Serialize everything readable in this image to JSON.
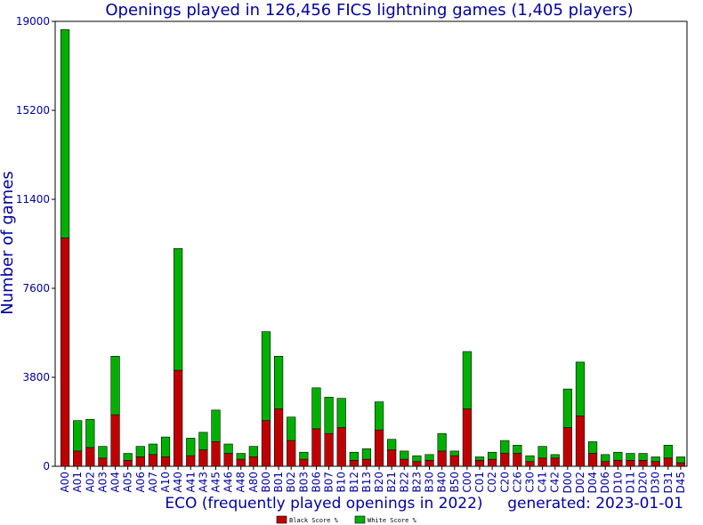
{
  "chart_data": {
    "type": "bar",
    "stacked": true,
    "title": "Openings played in 126,456 FICS lightning games (1,405 players)",
    "xlabel": "ECO (frequently played openings in 2022)",
    "ylabel": "Number of games",
    "generated": "generated: 2023-01-01",
    "ylim": [
      0,
      19000
    ],
    "yticks": [
      0,
      3800,
      7600,
      11400,
      15200,
      19000
    ],
    "legend_position": "bottom-center",
    "categories": [
      "A00",
      "A01",
      "A02",
      "A03",
      "A04",
      "A05",
      "A06",
      "A07",
      "A10",
      "A40",
      "A41",
      "A43",
      "A45",
      "A46",
      "A48",
      "A80",
      "B00",
      "B01",
      "B02",
      "B03",
      "B06",
      "B07",
      "B10",
      "B12",
      "B13",
      "B20",
      "B21",
      "B22",
      "B23",
      "B30",
      "B40",
      "B50",
      "C00",
      "C01",
      "C02",
      "C20",
      "C26",
      "C30",
      "C41",
      "C42",
      "D00",
      "D02",
      "D04",
      "D06",
      "D10",
      "D11",
      "D20",
      "D30",
      "D31",
      "D45"
    ],
    "series": [
      {
        "name": "Black Score %",
        "color": "#c00000",
        "values": [
          9750,
          650,
          800,
          350,
          2200,
          250,
          400,
          500,
          400,
          4100,
          450,
          700,
          1050,
          550,
          300,
          400,
          1950,
          2450,
          1100,
          300,
          1600,
          1400,
          1650,
          250,
          300,
          1550,
          700,
          300,
          200,
          250,
          650,
          450,
          2450,
          250,
          300,
          550,
          550,
          200,
          350,
          350,
          1650,
          2150,
          550,
          200,
          250,
          250,
          250,
          200,
          350,
          150
        ]
      },
      {
        "name": "White Score %",
        "color": "#00b000",
        "values": [
          8900,
          1300,
          1200,
          500,
          2500,
          300,
          450,
          450,
          850,
          5200,
          750,
          750,
          1350,
          400,
          250,
          450,
          3800,
          2250,
          1000,
          300,
          1750,
          1550,
          1250,
          350,
          450,
          1200,
          450,
          350,
          250,
          250,
          750,
          200,
          2450,
          150,
          300,
          550,
          350,
          250,
          500,
          150,
          1650,
          2300,
          500,
          300,
          350,
          300,
          300,
          200,
          550,
          250
        ]
      }
    ]
  }
}
